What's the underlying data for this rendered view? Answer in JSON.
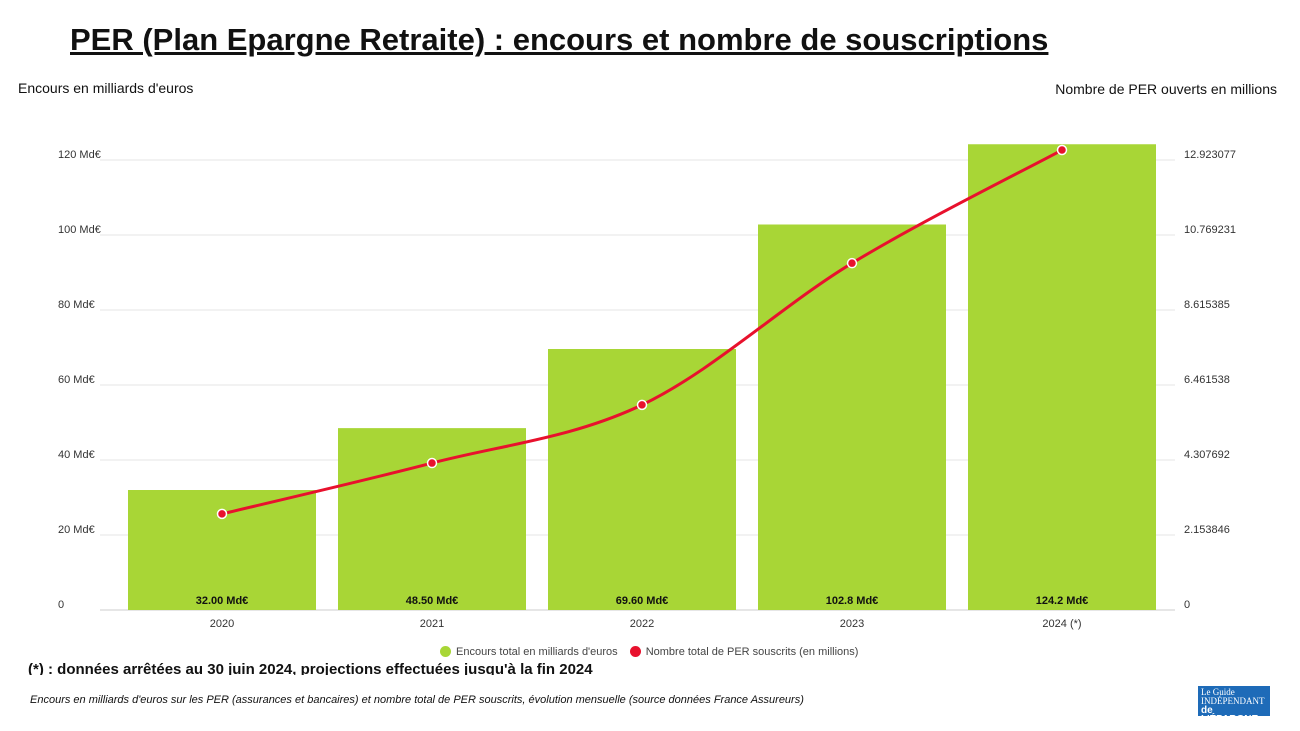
{
  "chart_data": {
    "type": "bar+line",
    "title": "PER (Plan Epargne Retraite) : encours et nombre de souscriptions",
    "ylabel_left": "Encours en milliards d'euros",
    "ylabel_right": "Nombre de PER ouverts en millions",
    "categories": [
      "2020",
      "2021",
      "2022",
      "2023",
      "2024 (*)"
    ],
    "left_ticks": [
      "0",
      "20 Md€",
      "40 Md€",
      "60 Md€",
      "80 Md€",
      "100 Md€",
      "120 Md€"
    ],
    "right_ticks": [
      "0",
      "2.153846",
      "4.307692",
      "6.461538",
      "8.615385",
      "10.769231",
      "12.923077"
    ],
    "ylim_left": [
      0,
      120
    ],
    "ylim_right": [
      0,
      12.923077
    ],
    "grid": true,
    "legend_position": "bottom",
    "series": [
      {
        "name": "Encours total en milliards d'euros",
        "type": "bar",
        "axis": "left",
        "color": "#a8d636",
        "values": [
          32.0,
          48.5,
          69.6,
          102.8,
          124.2
        ],
        "labels": [
          "32.00 Md€",
          "48.50 Md€",
          "69.60 Md€",
          "102.8 Md€",
          "124.2 Md€"
        ]
      },
      {
        "name": "Nombre total de PER souscrits (en millions)",
        "type": "line",
        "axis": "right",
        "color": "#e8112d",
        "values": [
          2.76,
          4.22,
          5.89,
          9.96,
          13.21
        ]
      }
    ]
  },
  "footnote": "(*) : données arrêtées au 30 juin 2024, projections effectuées jusqu'à la fin 2024",
  "source": "Encours en milliards d'euros sur les PER (assurances et bancaires) et nombre total de PER souscrits, évolution mensuelle (source données France Assureurs)",
  "logo": "Le Guide Indépendant de l'Épargne"
}
